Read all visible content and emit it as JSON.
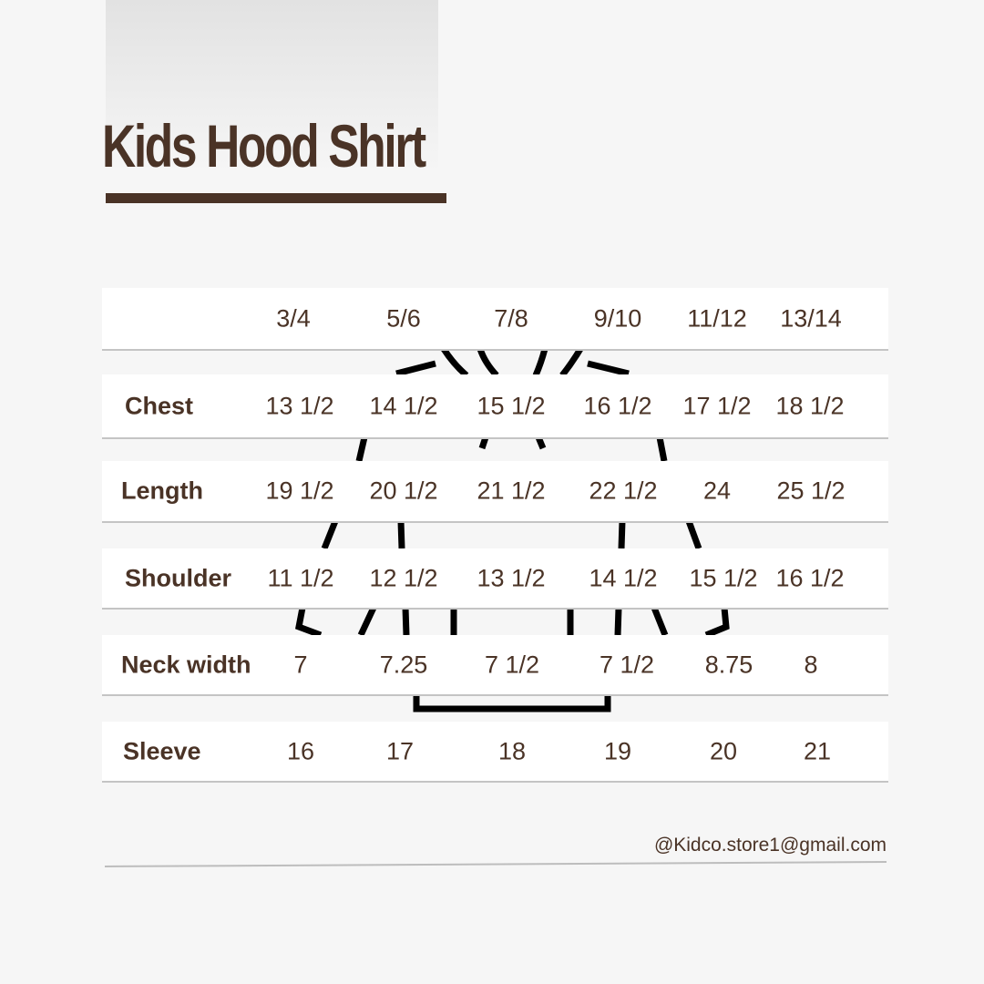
{
  "title": "Kids Hood Shirt",
  "colors": {
    "text": "#4a3326",
    "background": "#f6f6f6",
    "row": "#ffffff"
  },
  "sizes": [
    "3/4",
    "5/6",
    "7/8",
    "9/10",
    "11/12",
    "13/14"
  ],
  "rows": [
    {
      "label": "Chest",
      "values": [
        "13 1/2",
        "14 1/2",
        "15 1/2",
        "16 1/2",
        "17 1/2",
        "18 1/2"
      ]
    },
    {
      "label": "Length",
      "values": [
        "19 1/2",
        "20 1/2",
        "21 1/2",
        "22 1/2",
        "24",
        "25 1/2"
      ]
    },
    {
      "label": "Shoulder",
      "values": [
        "11 1/2",
        "12 1/2",
        "13 1/2",
        "14 1/2",
        "15 1/2",
        "16 1/2"
      ]
    },
    {
      "label": "Neck width",
      "values": [
        "7",
        "7.25",
        "7 1/2",
        "7 1/2",
        "8.75",
        "8"
      ]
    },
    {
      "label": "Sleeve",
      "values": [
        "16",
        "17",
        "18",
        "19",
        "20",
        "21"
      ]
    }
  ],
  "contact": "@Kidco.store1@gmail.com",
  "illustration": "hoodie-outline-icon"
}
